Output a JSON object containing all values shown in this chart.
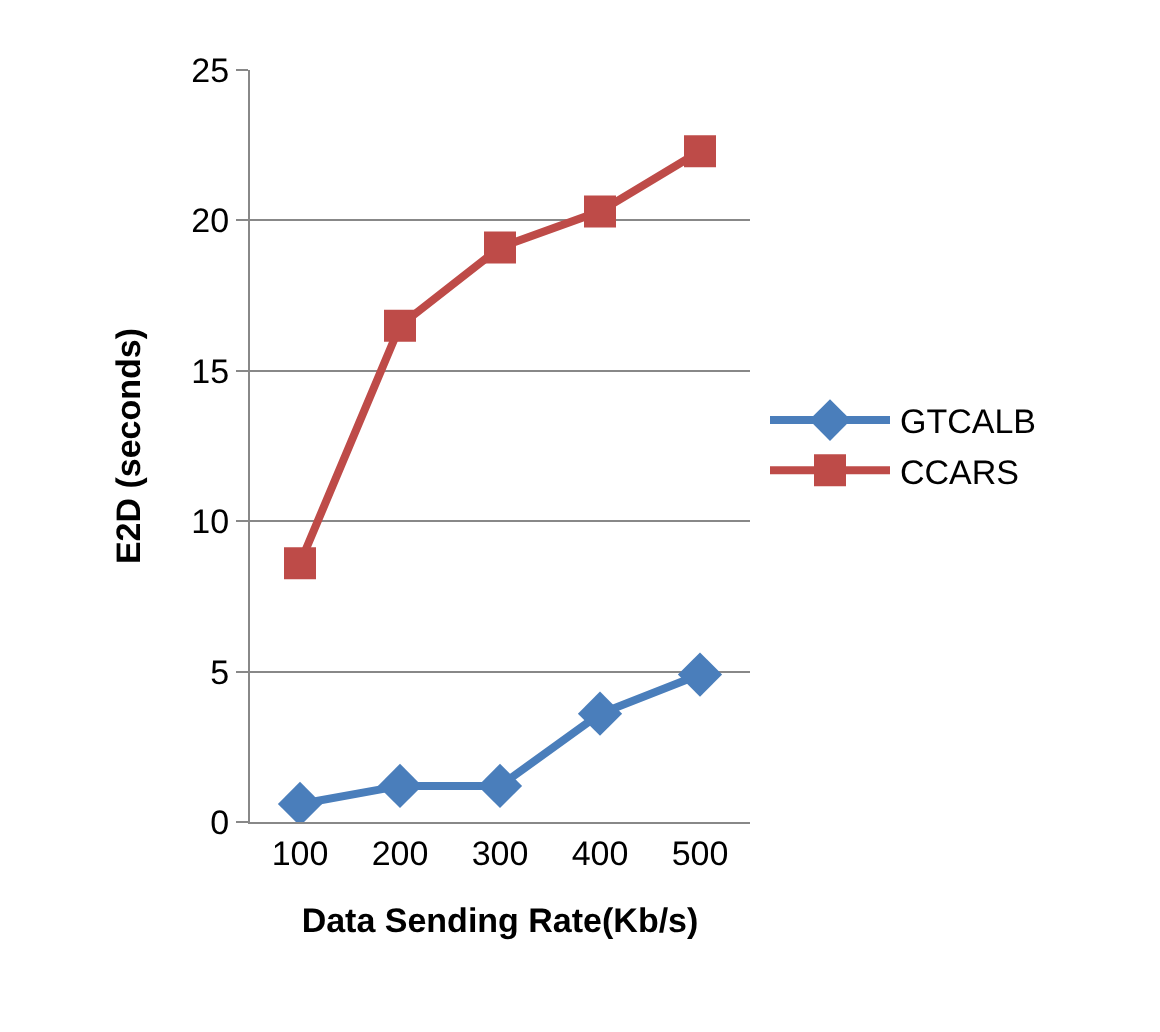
{
  "chart_data": {
    "type": "line",
    "xlabel": "Data Sending Rate(Kb/s)",
    "ylabel": "E2D (seconds)",
    "categories": [
      "100",
      "200",
      "300",
      "400",
      "500"
    ],
    "series": [
      {
        "name": "GTCALB",
        "color": "#4a7ebb",
        "marker": "diamond",
        "values": [
          0.6,
          1.2,
          1.2,
          3.6,
          4.9
        ]
      },
      {
        "name": "CCARS",
        "color": "#be4b48",
        "marker": "square",
        "values": [
          8.6,
          16.5,
          19.1,
          20.3,
          22.3
        ]
      }
    ],
    "ylim": [
      0,
      25
    ],
    "yticks": [
      0,
      5,
      10,
      15,
      20,
      25
    ],
    "grid": "y",
    "legend": "right",
    "line_style": "solid"
  }
}
